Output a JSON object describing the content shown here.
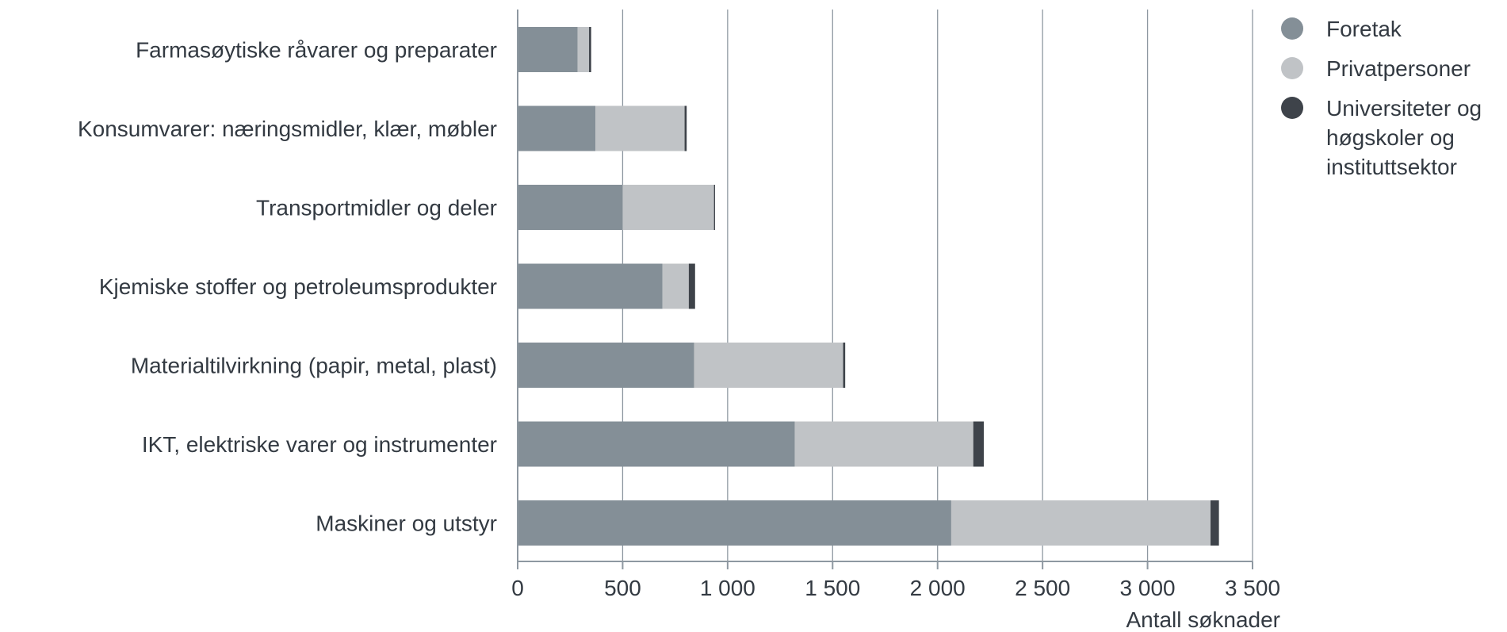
{
  "chart_data": {
    "type": "bar",
    "orientation": "horizontal",
    "stacked": true,
    "categories": [
      "Farmasøytiske råvarer og preparater",
      "Konsumvarer: næringsmidler, klær, møbler",
      "Transportmidler og deler",
      "Kjemiske stoffer og petroleumsprodukter",
      "Materialtilvirkning (papir, metal, plast)",
      "IKT, elektriske varer og instrumenter",
      "Maskiner og utstyr"
    ],
    "series": [
      {
        "name": "Foretak",
        "color": "#848f97",
        "values": [
          285,
          370,
          500,
          690,
          840,
          1320,
          2065
        ]
      },
      {
        "name": "Privatpersoner",
        "color": "#c0c3c6",
        "values": [
          55,
          425,
          435,
          125,
          710,
          850,
          1235
        ]
      },
      {
        "name": "Universiteter og høgskoler og instituttsektor",
        "color": "#3e434a",
        "values": [
          10,
          10,
          5,
          30,
          10,
          50,
          40
        ]
      }
    ],
    "legend_lines": [
      [
        "Foretak"
      ],
      [
        "Privatpersoner"
      ],
      [
        "Universiteter og",
        "høgskoler og",
        "instituttsektor"
      ]
    ],
    "xlabel": "Antall søknader",
    "xlim": [
      0,
      3500
    ],
    "xticks": [
      0,
      500,
      1000,
      1500,
      2000,
      2500,
      3000,
      3500
    ],
    "xtick_labels": [
      "0",
      "500",
      "1 000",
      "1 500",
      "2 000",
      "2 500",
      "3 000",
      "3 500"
    ],
    "grid": "vertical",
    "legend_position": "top-right",
    "axis_color": "#8e98a1"
  }
}
